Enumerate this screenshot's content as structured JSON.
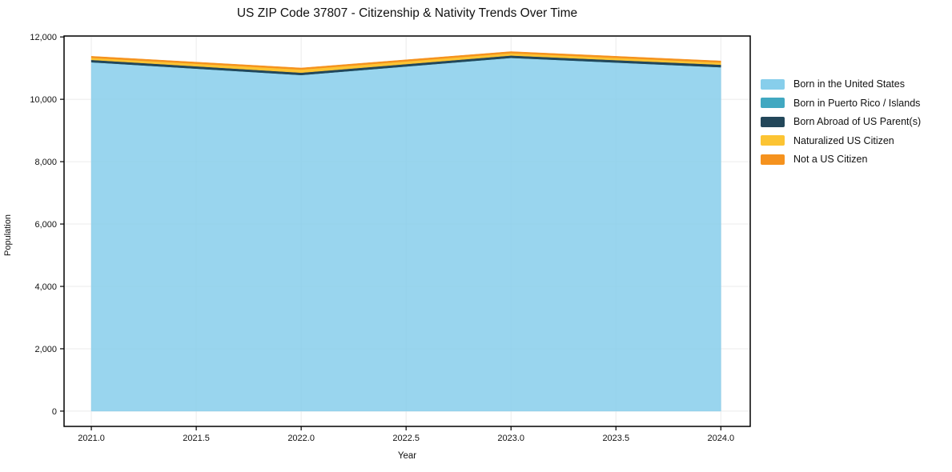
{
  "chart_data": {
    "type": "area",
    "stacked": true,
    "title": "US ZIP Code 37807 - Citizenship & Nativity Trends Over Time",
    "xlabel": "Year",
    "ylabel": "Population",
    "x": [
      2021,
      2022,
      2023,
      2024
    ],
    "x_tick_values": [
      2021.0,
      2021.5,
      2022.0,
      2022.5,
      2023.0,
      2023.5,
      2024.0
    ],
    "x_tick_labels": [
      "2021.0",
      "2021.5",
      "2022.0",
      "2022.5",
      "2023.0",
      "2023.5",
      "2024.0"
    ],
    "y_tick_values": [
      0,
      2000,
      4000,
      6000,
      8000,
      10000,
      12000
    ],
    "y_tick_labels": [
      "0",
      "2,000",
      "4,000",
      "6,000",
      "8,000",
      "10,000",
      "12,000"
    ],
    "xlim": [
      2020.87,
      2024.14
    ],
    "ylim": [
      -490,
      12030
    ],
    "grid": true,
    "legend_position": "right",
    "series": [
      {
        "name": "Born in the United States",
        "color": "#87CEEB",
        "opacity": 0.85,
        "values": [
          11190,
          10780,
          11330,
          11030
        ]
      },
      {
        "name": "Born in Puerto Rico / Islands",
        "color": "#41A8C1",
        "opacity": 1,
        "values": [
          0,
          0,
          0,
          0
        ]
      },
      {
        "name": "Born Abroad of US Parent(s)",
        "color": "#23475A",
        "opacity": 1,
        "values": [
          75,
          75,
          75,
          80
        ]
      },
      {
        "name": "Naturalized US Citizen",
        "color": "#FCC433",
        "opacity": 1,
        "values": [
          65,
          100,
          75,
          70
        ]
      },
      {
        "name": "Not a US Citizen",
        "color": "#F5921E",
        "opacity": 1,
        "values": [
          50,
          50,
          50,
          50
        ]
      }
    ],
    "colors": {
      "grid": "#ebebeb",
      "spine": "#000000",
      "tick_text": "#111111",
      "background": "#ffffff"
    }
  }
}
